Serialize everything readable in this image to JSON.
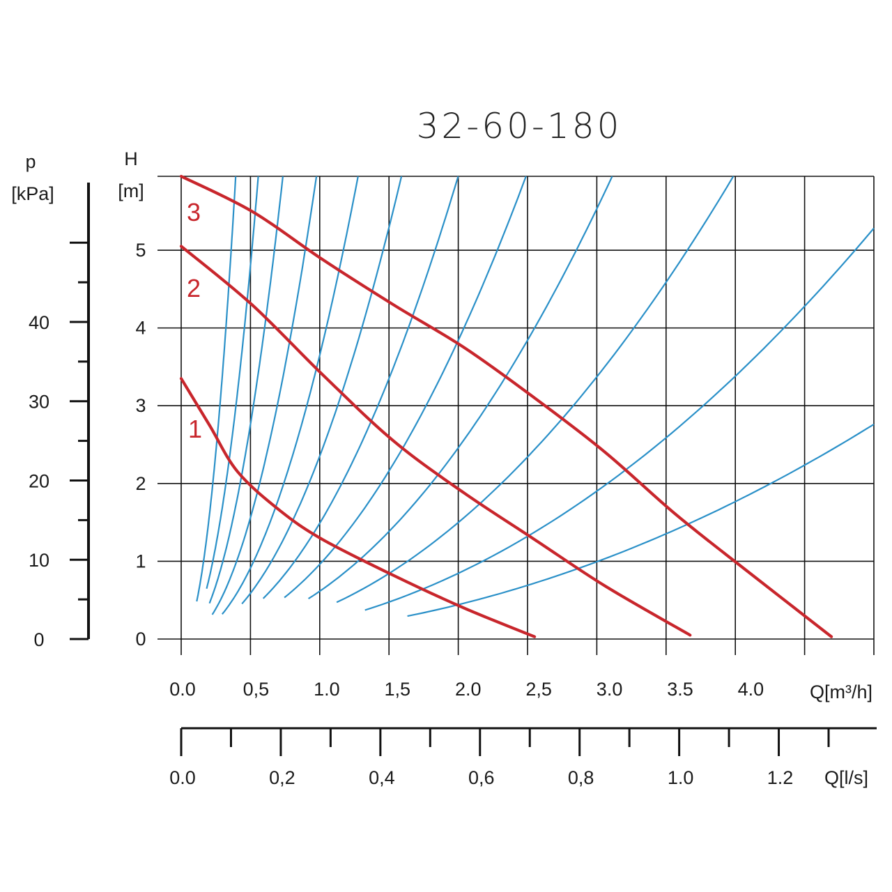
{
  "chart_data": {
    "type": "line",
    "title": "32-60-180",
    "y_axis": {
      "label": "H",
      "unit": "[m]",
      "range": [
        0,
        5.95
      ],
      "ticks": [
        "0",
        "1",
        "2",
        "3",
        "4",
        "5"
      ]
    },
    "y2_axis": {
      "label": "p",
      "unit": "[kPa]",
      "ticks": [
        "0",
        "10",
        "20",
        "30",
        "40"
      ]
    },
    "x_axis": {
      "label": "Q[m³/h]",
      "range": [
        0,
        4.9
      ],
      "ticks": [
        {
          "v": 0,
          "t": "0.0"
        },
        {
          "v": 0.5,
          "t": "0,5"
        },
        {
          "v": 1.0,
          "t": "1.0"
        },
        {
          "v": 1.5,
          "t": "1,5"
        },
        {
          "v": 2.0,
          "t": "2.0"
        },
        {
          "v": 2.5,
          "t": "2,5"
        },
        {
          "v": 3.0,
          "t": "3.0"
        },
        {
          "v": 3.5,
          "t": "3.5"
        },
        {
          "v": 4.0,
          "t": "4.0"
        }
      ]
    },
    "x2_axis": {
      "label": "Q[l/s]",
      "ticks": [
        {
          "v": 0,
          "t": "0.0"
        },
        {
          "v": 0.2,
          "t": "0,2"
        },
        {
          "v": 0.4,
          "t": "0,4"
        },
        {
          "v": 0.6,
          "t": "0,6"
        },
        {
          "v": 0.8,
          "t": "0,8"
        },
        {
          "v": 1.0,
          "t": "1.0"
        },
        {
          "v": 1.2,
          "t": "1.2"
        }
      ]
    },
    "grid": true,
    "series": [
      {
        "name": "1",
        "color": "#c8262c",
        "points": [
          [
            0,
            3.35
          ],
          [
            0.2,
            2.75
          ],
          [
            0.4,
            2.15
          ],
          [
            0.7,
            1.65
          ],
          [
            1.0,
            1.28
          ],
          [
            1.5,
            0.82
          ],
          [
            2.0,
            0.4
          ],
          [
            2.5,
            0.03
          ]
        ]
      },
      {
        "name": "2",
        "color": "#c8262c",
        "points": [
          [
            0,
            5.05
          ],
          [
            0.5,
            4.3
          ],
          [
            1.0,
            3.4
          ],
          [
            1.5,
            2.55
          ],
          [
            2.0,
            1.88
          ],
          [
            2.5,
            1.28
          ],
          [
            3.0,
            0.68
          ],
          [
            3.6,
            0.05
          ]
        ]
      },
      {
        "name": "3",
        "color": "#c8262c",
        "points": [
          [
            0,
            5.95
          ],
          [
            0.5,
            5.5
          ],
          [
            1.0,
            4.88
          ],
          [
            1.5,
            4.3
          ],
          [
            2.0,
            3.75
          ],
          [
            2.5,
            3.1
          ],
          [
            3.0,
            2.4
          ],
          [
            3.5,
            1.6
          ],
          [
            4.0,
            0.88
          ],
          [
            4.6,
            0.03
          ]
        ]
      }
    ],
    "system_curves": {
      "color": "#2a90c8",
      "k": [
        40,
        20,
        11.5,
        6.5,
        3.8,
        2.45,
        1.55,
        1.0,
        0.64,
        0.39,
        0.22,
        0.115
      ],
      "start_q": [
        0.11,
        0.18,
        0.2,
        0.22,
        0.29,
        0.43,
        0.58,
        0.73,
        0.9,
        1.1,
        1.3,
        1.6
      ]
    }
  },
  "labels": {
    "title": "32-60-180",
    "y_label": "H",
    "y_unit": "[m]",
    "p_label": "p",
    "p_unit": "[kPa]",
    "q1_label": "Q[m³/h]",
    "q2_label": "Q[l/s]",
    "curve_1": "1",
    "curve_2": "2",
    "curve_3": "3"
  }
}
